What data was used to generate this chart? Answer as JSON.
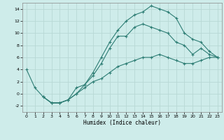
{
  "title": "",
  "xlabel": "Humidex (Indice chaleur)",
  "background_color": "#ceecea",
  "grid_color": "#b8d8d5",
  "line_color": "#2d7d74",
  "xlim": [
    -0.5,
    23.5
  ],
  "ylim": [
    -3,
    15
  ],
  "xticks": [
    0,
    1,
    2,
    3,
    4,
    5,
    6,
    7,
    8,
    9,
    10,
    11,
    12,
    13,
    14,
    15,
    16,
    17,
    18,
    19,
    20,
    21,
    22,
    23
  ],
  "yticks": [
    -2,
    0,
    2,
    4,
    6,
    8,
    10,
    12,
    14
  ],
  "line1_x": [
    0,
    1,
    2,
    3,
    4,
    5,
    6,
    7,
    8,
    9,
    10,
    11,
    12,
    13,
    14,
    15,
    16,
    17,
    18,
    19,
    20,
    21,
    22,
    23
  ],
  "line1_y": [
    4.0,
    1.0,
    -0.5,
    -1.5,
    -1.5,
    -1.0,
    1.0,
    1.5,
    3.0,
    5.0,
    7.5,
    9.5,
    9.5,
    11.0,
    11.5,
    11.0,
    10.5,
    10.0,
    8.5,
    8.0,
    6.5,
    7.5,
    6.5,
    6.0
  ],
  "line2_x": [
    2,
    3,
    4,
    5,
    6,
    7,
    8,
    9,
    10,
    11,
    12,
    13,
    14,
    15,
    16,
    17,
    18,
    19,
    20,
    21,
    22,
    23
  ],
  "line2_y": [
    -0.5,
    -1.5,
    -1.5,
    -1.0,
    0.0,
    1.5,
    3.5,
    6.0,
    8.5,
    10.5,
    12.0,
    13.0,
    13.5,
    14.5,
    14.0,
    13.5,
    12.5,
    10.0,
    9.0,
    8.5,
    7.0,
    6.0
  ],
  "line3_x": [
    2,
    3,
    4,
    5,
    6,
    7,
    8,
    9,
    10,
    11,
    12,
    13,
    14,
    15,
    16,
    17,
    18,
    19,
    20,
    21,
    22,
    23
  ],
  "line3_y": [
    -0.5,
    -1.5,
    -1.5,
    -1.0,
    0.0,
    1.0,
    2.0,
    2.5,
    3.5,
    4.5,
    5.0,
    5.5,
    6.0,
    6.0,
    6.5,
    6.0,
    5.5,
    5.0,
    5.0,
    5.5,
    6.0,
    6.0
  ]
}
